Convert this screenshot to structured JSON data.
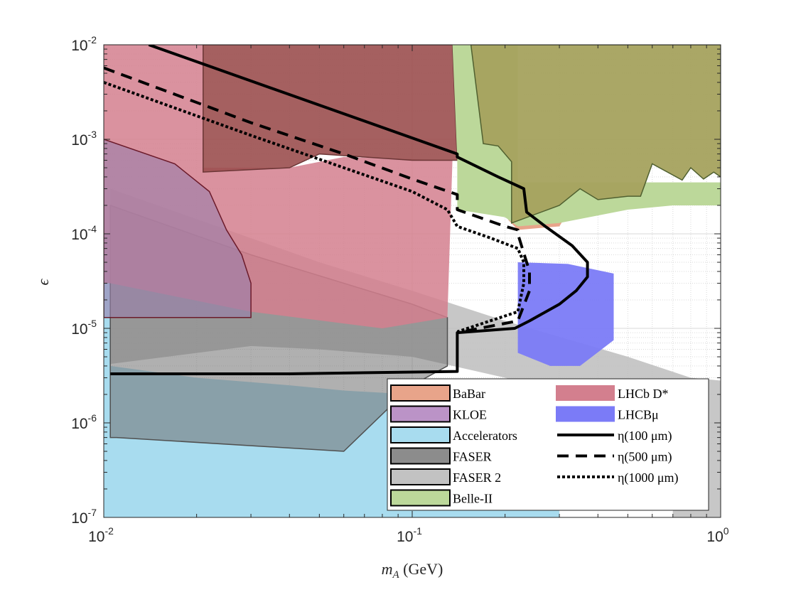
{
  "chart_data": {
    "type": "area",
    "x_scale": "log",
    "y_scale": "log",
    "xlim": [
      0.01,
      1
    ],
    "ylim": [
      1e-07,
      0.01
    ],
    "grid": true,
    "legend_position": "bottom-right",
    "xlabel": "m_A (GeV)",
    "xlabel_parts": {
      "sym": "m",
      "sub": "A",
      "unit": " (GeV)"
    },
    "ylabel": "ϵ",
    "x_ticks": [
      {
        "base": "10",
        "exp": "-2",
        "value": 0.01
      },
      {
        "base": "10",
        "exp": "-1",
        "value": 0.1
      },
      {
        "base": "10",
        "exp": "0",
        "value": 1
      }
    ],
    "y_ticks": [
      {
        "base": "10",
        "exp": "-2",
        "value": 0.01
      },
      {
        "base": "10",
        "exp": "-3",
        "value": 0.001
      },
      {
        "base": "10",
        "exp": "-4",
        "value": 0.0001
      },
      {
        "base": "10",
        "exp": "-5",
        "value": 1e-05
      },
      {
        "base": "10",
        "exp": "-6",
        "value": 1e-06
      },
      {
        "base": "10",
        "exp": "-7",
        "value": 1e-07
      }
    ],
    "regions": [
      {
        "name": "Accelerators",
        "color": "#a8dcef",
        "stroke": "none",
        "opacity": 1,
        "points": [
          [
            0.01,
            0.0001
          ],
          [
            0.0105,
            0.0001
          ],
          [
            0.0105,
            4e-06
          ],
          [
            0.02,
            3e-06
          ],
          [
            0.04,
            2.5e-06
          ],
          [
            0.06,
            2.2e-06
          ],
          [
            0.1,
            2e-06
          ],
          [
            0.14,
            1.8e-06
          ],
          [
            0.2,
            1.5e-06
          ],
          [
            0.3,
            1e-06
          ],
          [
            0.3,
            1e-07
          ],
          [
            0.01,
            1e-07
          ]
        ]
      },
      {
        "name": "FASER 2",
        "color": "#bdbdbd",
        "stroke": "none",
        "opacity": 0.85,
        "points": [
          [
            0.0105,
            0.0003
          ],
          [
            0.05,
            5e-05
          ],
          [
            0.1,
            2.5e-05
          ],
          [
            0.2,
            1.2e-05
          ],
          [
            0.5,
            5e-06
          ],
          [
            0.8,
            3e-06
          ],
          [
            1,
            2.8e-06
          ],
          [
            1,
            1e-07
          ],
          [
            0.7,
            1e-07
          ],
          [
            0.7,
            2e-07
          ],
          [
            0.4,
            1.5e-06
          ],
          [
            0.2,
            3e-06
          ],
          [
            0.1,
            5e-06
          ],
          [
            0.05,
            6e-06
          ],
          [
            0.03,
            6.5e-06
          ],
          [
            0.0105,
            4.2e-06
          ]
        ]
      },
      {
        "name": "FASER",
        "color": "#707070",
        "stroke": "#505050",
        "opacity": 0.55,
        "points": [
          [
            0.0105,
            0.0002
          ],
          [
            0.03,
            6e-05
          ],
          [
            0.06,
            3e-05
          ],
          [
            0.1,
            1.8e-05
          ],
          [
            0.13,
            1.3e-05
          ],
          [
            0.13,
            4e-06
          ],
          [
            0.1,
            2.5e-06
          ],
          [
            0.06,
            5e-07
          ],
          [
            0.011,
            7e-07
          ],
          [
            0.0105,
            7e-07
          ]
        ]
      },
      {
        "name": "LHCb D*",
        "color": "#d37f8e",
        "stroke": "none",
        "opacity": 0.85,
        "points": [
          [
            0.01,
            0.01
          ],
          [
            0.021,
            0.01
          ],
          [
            0.021,
            0.0005
          ],
          [
            0.04,
            0.0005
          ],
          [
            0.06,
            0.00065
          ],
          [
            0.13,
            0.0006
          ],
          [
            0.135,
            0.0006
          ],
          [
            0.13,
            1.3e-05
          ],
          [
            0.08,
            1e-05
          ],
          [
            0.03,
            1.5e-05
          ],
          [
            0.0105,
            3e-05
          ],
          [
            0.01,
            3e-05
          ]
        ]
      },
      {
        "name": "KLOE",
        "color": "#9a7fab",
        "stroke": "#6b1a2a",
        "opacity": 0.6,
        "points": [
          [
            0.01,
            0.001
          ],
          [
            0.017,
            0.00055
          ],
          [
            0.022,
            0.00028
          ],
          [
            0.025,
            0.00011
          ],
          [
            0.028,
            6e-05
          ],
          [
            0.03,
            3e-05
          ],
          [
            0.03,
            1.3e-05
          ],
          [
            0.01,
            1.3e-05
          ]
        ]
      },
      {
        "name": "BaBar",
        "color": "#9b4f4f",
        "stroke": "#6b3636",
        "opacity": 0.9,
        "points": [
          [
            0.021,
            0.01
          ],
          [
            0.135,
            0.01
          ],
          [
            0.14,
            0.0006
          ],
          [
            0.1,
            0.0006
          ],
          [
            0.05,
            0.0007
          ],
          [
            0.04,
            0.0005
          ],
          [
            0.021,
            0.00045
          ]
        ]
      },
      {
        "name": "BaBar-low",
        "color": "#e8a48a",
        "stroke": "none",
        "opacity": 1,
        "points": [
          [
            0.205,
            0.00014
          ],
          [
            0.22,
            0.00011
          ],
          [
            0.3,
            0.00012
          ],
          [
            0.33,
            0.0002
          ],
          [
            0.205,
            0.00018
          ]
        ]
      },
      {
        "name": "Belle-II",
        "color": "#bcd89a",
        "stroke": "none",
        "opacity": 1,
        "points": [
          [
            0.135,
            0.01
          ],
          [
            0.22,
            0.01
          ],
          [
            0.22,
            0.00012
          ],
          [
            0.2,
            0.00015
          ],
          [
            0.14,
            0.00018
          ],
          [
            0.14,
            0.0006
          ]
        ]
      },
      {
        "name": "Belle-II-high",
        "color": "#bcd89a",
        "stroke": "none",
        "opacity": 1,
        "points": [
          [
            0.22,
            0.00035
          ],
          [
            1,
            0.00035
          ],
          [
            1,
            0.0002
          ],
          [
            0.7,
            0.0002
          ],
          [
            0.5,
            0.00018
          ],
          [
            0.3,
            0.00013
          ],
          [
            0.22,
            0.00012
          ]
        ]
      },
      {
        "name": "Belle-II-olive",
        "color": "#a5a25e",
        "stroke": "#506030",
        "opacity": 0.95,
        "points": [
          [
            0.205,
            0.01
          ],
          [
            1,
            0.01
          ],
          [
            1,
            0.0004
          ],
          [
            0.95,
            0.00045
          ],
          [
            0.88,
            0.00038
          ],
          [
            0.8,
            0.0005
          ],
          [
            0.75,
            0.00037
          ],
          [
            0.6,
            0.00055
          ],
          [
            0.55,
            0.00025
          ],
          [
            0.5,
            0.00025
          ],
          [
            0.4,
            0.00023
          ],
          [
            0.35,
            0.0003
          ],
          [
            0.3,
            0.0002
          ],
          [
            0.21,
            0.00013
          ],
          [
            0.21,
            0.00058
          ],
          [
            0.19,
            0.00085
          ],
          [
            0.17,
            0.0009
          ],
          [
            0.155,
            0.01
          ]
        ]
      },
      {
        "name": "LHCBμ",
        "color": "#7b7bf7",
        "stroke": "none",
        "opacity": 0.95,
        "points": [
          [
            0.22,
            5e-05
          ],
          [
            0.32,
            4.8e-05
          ],
          [
            0.45,
            3.8e-05
          ],
          [
            0.45,
            7.5e-06
          ],
          [
            0.35,
            4e-06
          ],
          [
            0.28,
            4e-06
          ],
          [
            0.22,
            5.5e-06
          ]
        ]
      }
    ],
    "lines": [
      {
        "name": "η(100 μm)",
        "style": "solid",
        "width": 4,
        "points": [
          [
            0.0105,
            3.3e-06
          ],
          [
            0.04,
            3.3e-06
          ],
          [
            0.14,
            3.5e-06
          ],
          [
            0.14,
            9e-06
          ],
          [
            0.215,
            1e-05
          ],
          [
            0.24,
            1.2e-05
          ],
          [
            0.3,
            1.8e-05
          ],
          [
            0.34,
            2.5e-05
          ],
          [
            0.37,
            3.5e-05
          ],
          [
            0.37,
            5e-05
          ],
          [
            0.33,
            7.5e-05
          ],
          [
            0.27,
            0.00012
          ],
          [
            0.235,
            0.00017
          ],
          [
            0.23,
            0.0003
          ],
          [
            0.19,
            0.0004
          ],
          [
            0.14,
            0.00065
          ],
          [
            0.14,
            0.0007
          ],
          [
            0.014,
            0.01
          ]
        ]
      },
      {
        "name": "η(500 μm)",
        "style": "dashed",
        "width": 4,
        "points": [
          [
            0.01,
            0.0057
          ],
          [
            0.03,
            0.0015
          ],
          [
            0.06,
            0.0007
          ],
          [
            0.1,
            0.00038
          ],
          [
            0.14,
            0.00026
          ],
          [
            0.14,
            0.00018
          ],
          [
            0.2,
            0.00012
          ],
          [
            0.22,
            0.00011
          ],
          [
            0.22,
            0.0001
          ],
          [
            0.235,
            5e-05
          ],
          [
            0.24,
            4e-05
          ],
          [
            0.24,
            2.5e-05
          ],
          [
            0.22,
            1.2e-05
          ],
          [
            0.14,
            9e-06
          ]
        ]
      },
      {
        "name": "η(1000 μm)",
        "style": "dotted",
        "width": 4,
        "points": [
          [
            0.01,
            0.004
          ],
          [
            0.03,
            0.0011
          ],
          [
            0.06,
            0.0005
          ],
          [
            0.1,
            0.00028
          ],
          [
            0.13,
            0.00018
          ],
          [
            0.14,
            0.00012
          ],
          [
            0.18,
            9e-05
          ],
          [
            0.22,
            7e-05
          ],
          [
            0.23,
            5e-05
          ],
          [
            0.23,
            3e-05
          ],
          [
            0.22,
            1.5e-05
          ],
          [
            0.14,
            9.2e-06
          ]
        ]
      }
    ],
    "legend": {
      "col1": [
        {
          "label": "BaBar",
          "swatch": "#e8a48a"
        },
        {
          "label": "KLOE",
          "swatch": "#bb93c7"
        },
        {
          "label": "Accelerators",
          "swatch": "#a8dcef"
        },
        {
          "label": "FASER",
          "swatch": "#8c8c8c"
        },
        {
          "label": "FASER 2",
          "swatch": "#c2c2c2"
        },
        {
          "label": "Belle-II",
          "swatch": "#bcd89a"
        }
      ],
      "col2": [
        {
          "label": "LHCb D*",
          "swatch": "#d37f8e",
          "type": "patch"
        },
        {
          "label": "LHCBμ",
          "swatch": "#7b7bf7",
          "type": "patch"
        },
        {
          "label": "η(100 μm)",
          "type": "solid"
        },
        {
          "label": "η(500 μm)",
          "type": "dashed"
        },
        {
          "label": "η(1000 μm)",
          "type": "dotted"
        }
      ]
    }
  }
}
